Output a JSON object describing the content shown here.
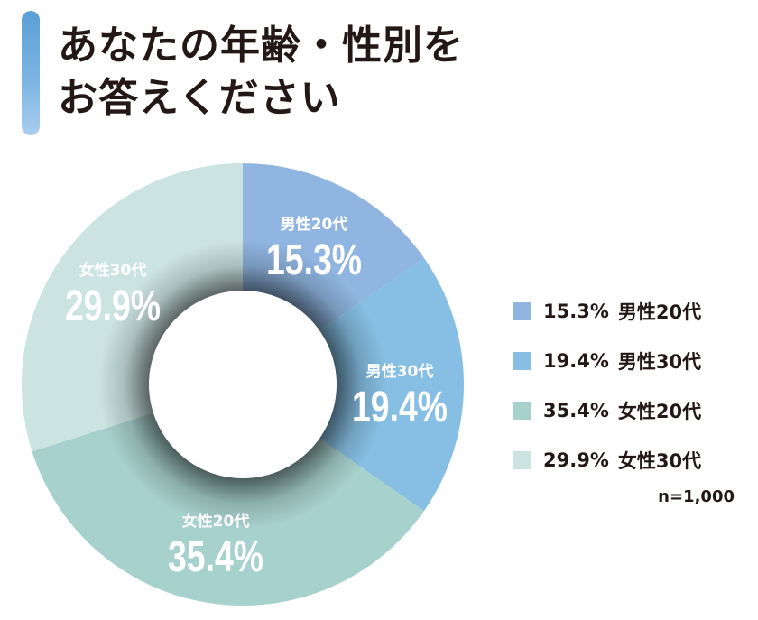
{
  "title": {
    "line1": "あなたの年齢・性別を",
    "line2": "お答えください"
  },
  "chart_data": {
    "type": "pie",
    "title": "あなたの年齢・性別をお答えください",
    "slices": [
      {
        "label": "男性20代",
        "value": 15.3,
        "display": "15.3%",
        "color": "#8fb5e0"
      },
      {
        "label": "男性30代",
        "value": 19.4,
        "display": "19.4%",
        "color": "#86bfe3"
      },
      {
        "label": "女性20代",
        "value": 35.4,
        "display": "35.4%",
        "color": "#a7d1cd"
      },
      {
        "label": "女性30代",
        "value": 29.9,
        "display": "29.9%",
        "color": "#cbe3e1"
      }
    ],
    "donut": true,
    "legend_position": "right",
    "sample_size": "n=1,000"
  }
}
